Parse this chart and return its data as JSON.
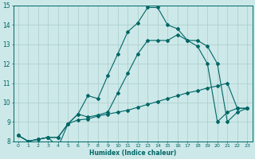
{
  "xlabel": "Humidex (Indice chaleur)",
  "bg_color": "#cce8e8",
  "grid_color": "#aacccc",
  "line_color": "#006666",
  "xlim": [
    -0.5,
    23.5
  ],
  "ylim": [
    8,
    15
  ],
  "line1_x": [
    0,
    1,
    2,
    3,
    4,
    5,
    6,
    7,
    8,
    9,
    10,
    11,
    12,
    13,
    14,
    15,
    16,
    17,
    18,
    19,
    20,
    21,
    22,
    23
  ],
  "line1_y": [
    8.3,
    8.0,
    8.1,
    8.2,
    8.2,
    8.9,
    9.1,
    9.15,
    9.3,
    9.4,
    9.5,
    9.6,
    9.75,
    9.9,
    10.05,
    10.2,
    10.35,
    10.5,
    10.6,
    10.75,
    10.85,
    11.0,
    9.7,
    9.7
  ],
  "line2_x": [
    0,
    1,
    2,
    3,
    4,
    5,
    6,
    7,
    8,
    9,
    10,
    11,
    12,
    13,
    14,
    15,
    16,
    17,
    18,
    19,
    20,
    21,
    22,
    23
  ],
  "line2_y": [
    8.3,
    8.0,
    8.1,
    8.2,
    7.7,
    8.9,
    9.4,
    10.35,
    10.2,
    11.4,
    12.5,
    13.65,
    14.1,
    14.9,
    14.9,
    14.0,
    13.8,
    13.2,
    13.2,
    12.9,
    12.0,
    9.0,
    9.5,
    9.7
  ],
  "line3_x": [
    0,
    1,
    2,
    3,
    4,
    5,
    6,
    7,
    8,
    9,
    10,
    11,
    12,
    13,
    14,
    15,
    16,
    17,
    18,
    19,
    20,
    21,
    22,
    23
  ],
  "line3_y": [
    8.3,
    8.0,
    8.1,
    8.2,
    8.2,
    8.9,
    9.4,
    9.25,
    9.35,
    9.5,
    10.5,
    11.5,
    12.5,
    13.2,
    13.2,
    13.2,
    13.5,
    13.2,
    12.9,
    12.0,
    9.0,
    9.5,
    9.7,
    9.7
  ]
}
